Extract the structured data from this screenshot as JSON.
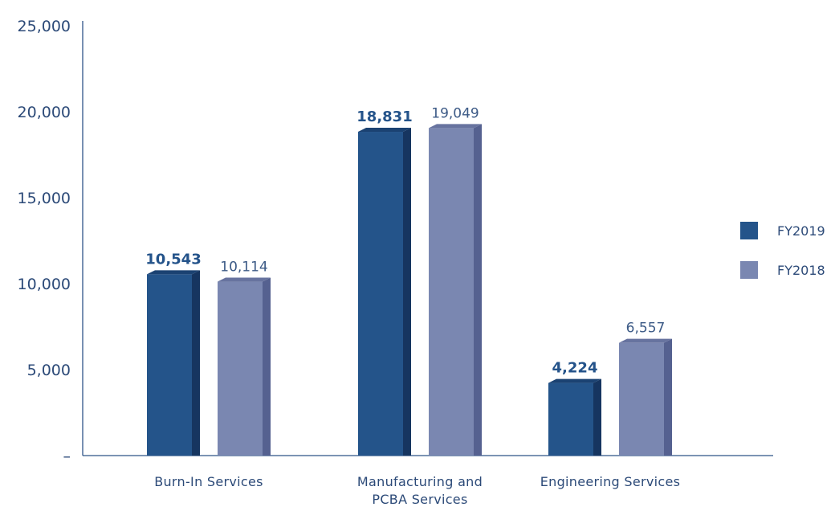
{
  "chart_data": {
    "type": "bar",
    "title": "",
    "xlabel": "",
    "ylabel": "",
    "ylim": [
      0,
      25000
    ],
    "yticks": [
      0,
      5000,
      10000,
      15000,
      20000,
      25000
    ],
    "ytick_labels": [
      "–",
      "5,000",
      "10,000",
      "15,000",
      "20,000",
      "25,000"
    ],
    "grid": false,
    "legend_position": "right",
    "categories": [
      [
        "Burn-In Services"
      ],
      [
        "Manufacturing and",
        "PCBA Services"
      ],
      [
        "Engineering Services"
      ]
    ],
    "series": [
      {
        "name": "FY2019",
        "color": "#24548a",
        "side_color": "#163560",
        "top_color": "#1b4272",
        "values": [
          10543,
          18831,
          4224
        ],
        "labels": [
          "10,543",
          "18,831",
          "4,224"
        ],
        "label_style": "bold"
      },
      {
        "name": "FY2018",
        "color": "#7a87b1",
        "side_color": "#556190",
        "top_color": "#67739f",
        "values": [
          10114,
          19049,
          6557
        ],
        "labels": [
          "10,114",
          "19,049",
          "6,557"
        ],
        "label_style": "normal"
      }
    ],
    "axis_color": "#2f5488"
  }
}
